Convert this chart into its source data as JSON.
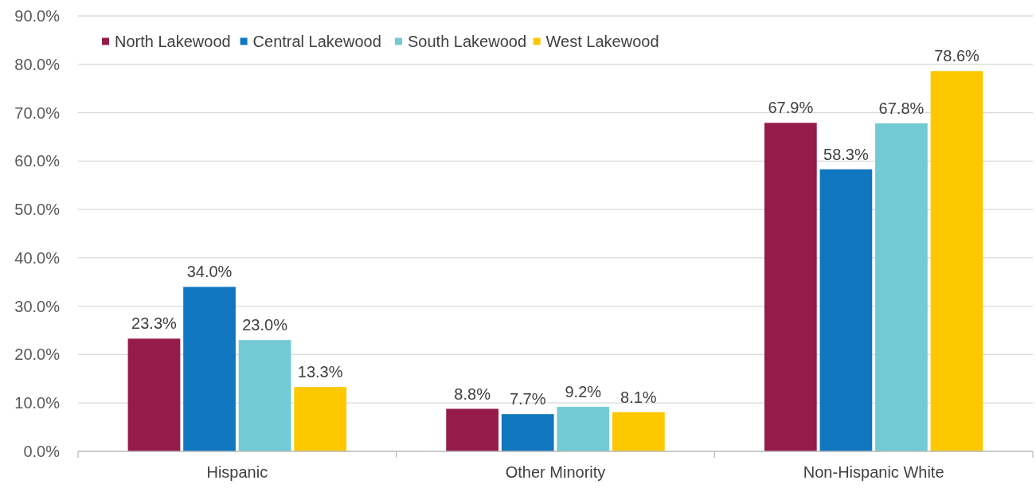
{
  "chart_data": {
    "type": "bar",
    "categories": [
      "Hispanic",
      "Other Minority",
      "Non-Hispanic White"
    ],
    "series": [
      {
        "name": "North Lakewood",
        "color": "#951b4b",
        "values": [
          23.3,
          8.8,
          67.9
        ],
        "value_labels": [
          "23.3%",
          "8.8%",
          "67.9%"
        ]
      },
      {
        "name": "Central Lakewood",
        "color": "#1076c0",
        "values": [
          34.0,
          7.7,
          58.3
        ],
        "value_labels": [
          "34.0%",
          "7.7%",
          "58.3%"
        ]
      },
      {
        "name": "South Lakewood",
        "color": "#72cbd4",
        "values": [
          23.0,
          9.2,
          67.8
        ],
        "value_labels": [
          "23.0%",
          "9.2%",
          "67.8%"
        ]
      },
      {
        "name": "West Lakewood",
        "color": "#fdc800",
        "values": [
          13.3,
          8.1,
          78.6
        ],
        "value_labels": [
          "13.3%",
          "8.1%",
          "78.6%"
        ]
      }
    ],
    "ylim": [
      0,
      90
    ],
    "yticks": [
      {
        "value": 0,
        "label": "0.0%"
      },
      {
        "value": 10,
        "label": "10.0%"
      },
      {
        "value": 20,
        "label": "20.0%"
      },
      {
        "value": 30,
        "label": "30.0%"
      },
      {
        "value": 40,
        "label": "40.0%"
      },
      {
        "value": 50,
        "label": "50.0%"
      },
      {
        "value": 60,
        "label": "60.0%"
      },
      {
        "value": 70,
        "label": "70.0%"
      },
      {
        "value": 80,
        "label": "80.0%"
      },
      {
        "value": 90,
        "label": "90.0%"
      }
    ],
    "grid": "y",
    "legend": "top left",
    "marker": "square"
  }
}
